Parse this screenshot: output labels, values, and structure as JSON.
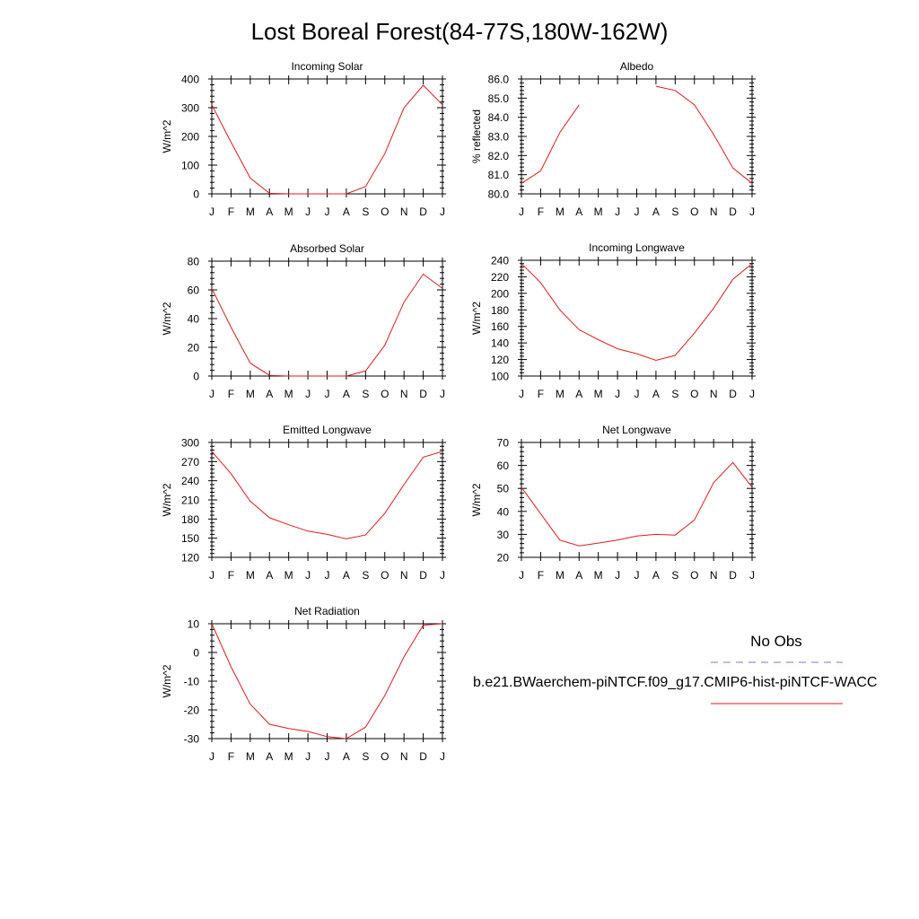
{
  "title": "Lost Boreal Forest(84-77S,180W-162W)",
  "legend": {
    "obs_label": "No Obs",
    "obs_color": "#7b7bd6",
    "model_label": "b.e21.BWaerchem-piNTCF.f09_g17.CMIP6-hist-piNTCF-WACC",
    "model_color": "#e31a1c"
  },
  "chart_data": [
    {
      "type": "line",
      "title": "Incoming Solar",
      "ylabel": "W/m^2",
      "x": [
        "J",
        "F",
        "M",
        "A",
        "M",
        "J",
        "J",
        "A",
        "S",
        "O",
        "N",
        "D",
        "J"
      ],
      "ylim": [
        0,
        400
      ],
      "yticks": [
        "0",
        "100",
        "200",
        "300",
        "400"
      ],
      "series": [
        {
          "values": [
            310,
            180,
            55,
            2,
            0,
            0,
            0,
            0,
            25,
            140,
            300,
            378,
            310
          ]
        }
      ]
    },
    {
      "type": "line",
      "title": "Albedo",
      "ylabel": "% reflected",
      "x": [
        "J",
        "F",
        "M",
        "A",
        "M",
        "J",
        "J",
        "A",
        "S",
        "O",
        "N",
        "D",
        "J"
      ],
      "ylim": [
        80.0,
        86.0
      ],
      "yticks": [
        "80.0",
        "81.0",
        "82.0",
        "83.0",
        "84.0",
        "85.0",
        "86.0"
      ],
      "series": [
        {
          "values": [
            80.55,
            81.2,
            83.2,
            84.65,
            null,
            null,
            null,
            85.62,
            85.4,
            84.65,
            83.1,
            81.35,
            80.55
          ]
        }
      ]
    },
    {
      "type": "line",
      "title": "Absorbed Solar",
      "ylabel": "W/m^2",
      "x": [
        "J",
        "F",
        "M",
        "A",
        "M",
        "J",
        "J",
        "A",
        "S",
        "O",
        "N",
        "D",
        "J"
      ],
      "ylim": [
        0,
        80
      ],
      "yticks": [
        "0",
        "20",
        "40",
        "60",
        "80"
      ],
      "series": [
        {
          "values": [
            61,
            34,
            9,
            0.5,
            0,
            0,
            0,
            0,
            3.5,
            21.5,
            51.5,
            71,
            61
          ]
        }
      ]
    },
    {
      "type": "line",
      "title": "Incoming Longwave",
      "ylabel": "W/m^2",
      "x": [
        "J",
        "F",
        "M",
        "A",
        "M",
        "J",
        "J",
        "A",
        "S",
        "O",
        "N",
        "D",
        "J"
      ],
      "ylim": [
        100,
        240
      ],
      "yticks": [
        "100",
        "120",
        "140",
        "160",
        "180",
        "200",
        "220",
        "240"
      ],
      "series": [
        {
          "values": [
            236,
            213,
            180,
            156,
            144,
            133,
            127,
            119,
            125,
            152,
            182,
            217,
            236
          ]
        }
      ]
    },
    {
      "type": "line",
      "title": "Emitted Longwave",
      "ylabel": "W/m^2",
      "x": [
        "J",
        "F",
        "M",
        "A",
        "M",
        "J",
        "J",
        "A",
        "S",
        "O",
        "N",
        "D",
        "J"
      ],
      "ylim": [
        120,
        300
      ],
      "yticks": [
        "120",
        "150",
        "180",
        "210",
        "240",
        "270",
        "300"
      ],
      "series": [
        {
          "values": [
            286,
            251,
            208,
            182,
            171,
            161,
            156,
            149,
            155,
            189,
            234,
            277,
            286
          ]
        }
      ]
    },
    {
      "type": "line",
      "title": "Net Longwave",
      "ylabel": "W/m^2",
      "x": [
        "J",
        "F",
        "M",
        "A",
        "M",
        "J",
        "J",
        "A",
        "S",
        "O",
        "N",
        "D",
        "J"
      ],
      "ylim": [
        20,
        70
      ],
      "yticks": [
        "20",
        "30",
        "40",
        "50",
        "60",
        "70"
      ],
      "series": [
        {
          "values": [
            50.5,
            39,
            27.5,
            25,
            26.2,
            27.5,
            29.3,
            30,
            29.7,
            36.3,
            52.5,
            61.3,
            50.5
          ]
        }
      ]
    },
    {
      "type": "line",
      "title": "Net Radiation",
      "ylabel": "W/m^2",
      "x": [
        "J",
        "F",
        "M",
        "A",
        "M",
        "J",
        "J",
        "A",
        "S",
        "O",
        "N",
        "D",
        "J"
      ],
      "ylim": [
        -30,
        10
      ],
      "yticks": [
        "-30",
        "-20",
        "-10",
        "0",
        "10"
      ],
      "series": [
        {
          "values": [
            10,
            -5,
            -18,
            -25,
            -26.5,
            -27.5,
            -29.3,
            -30,
            -26,
            -15,
            -1.5,
            9.5,
            10
          ]
        }
      ]
    }
  ]
}
